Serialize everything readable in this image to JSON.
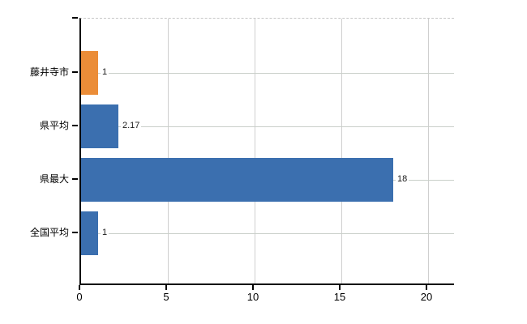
{
  "chart_data": {
    "type": "bar",
    "orientation": "horizontal",
    "title": "",
    "xlabel": "",
    "ylabel": "",
    "categories": [
      "藤井寺市",
      "県平均",
      "県最大",
      "全国平均"
    ],
    "values": [
      1,
      2.17,
      18,
      1
    ],
    "value_labels": [
      "1",
      "2.17",
      "18",
      "1"
    ],
    "bar_colors": [
      "#EB8D38",
      "#3B6FAF",
      "#3B6FAF",
      "#3B6FAF"
    ],
    "x_ticks": [
      0,
      5,
      10,
      15,
      20
    ],
    "x_tick_labels": [
      "0",
      "5",
      "10",
      "15",
      "20"
    ],
    "xlim": [
      0,
      21.6
    ],
    "grid": true,
    "legend": false
  },
  "colors": {
    "bar_orange": "#EB8D38",
    "bar_blue": "#3B6FAF",
    "vertical_gridline": "#cfcfcf",
    "category_gridline": "#c9cfc9",
    "axis": "#000000",
    "background": "#ffffff",
    "label_text": "#000000",
    "value_text": "#1a1a1a"
  }
}
